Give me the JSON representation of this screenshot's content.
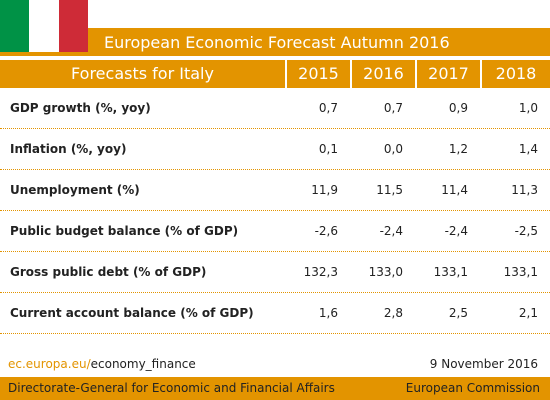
{
  "header": {
    "title": "European Economic Forecast Autumn 2016"
  },
  "table": {
    "columns": [
      "Forecasts for Italy",
      "2015",
      "2016",
      "2017",
      "2018"
    ],
    "rows": [
      [
        "GDP growth (%, yoy)",
        "0,7",
        "0,7",
        "0,9",
        "1,0"
      ],
      [
        "Inflation (%, yoy)",
        "0,1",
        "0,0",
        "1,2",
        "1,4"
      ],
      [
        "Unemployment (%)",
        "11,9",
        "11,5",
        "11,4",
        "11,3"
      ],
      [
        "Public budget balance (% of GDP)",
        "-2,6",
        "-2,4",
        "-2,4",
        "-2,5"
      ],
      [
        "Gross public debt (% of GDP)",
        "132,3",
        "133,0",
        "133,1",
        "133,1"
      ],
      [
        "Current account balance (% of GDP)",
        "1,6",
        "2,8",
        "2,5",
        "2,1"
      ]
    ]
  },
  "footer": {
    "link": [
      "ec.europa.eu/",
      "economy_finance"
    ],
    "date": "9 November 2016"
  },
  "bottom": {
    "left": "Directorate-General for Economic and Financial Affairs",
    "right": "European Commission"
  }
}
